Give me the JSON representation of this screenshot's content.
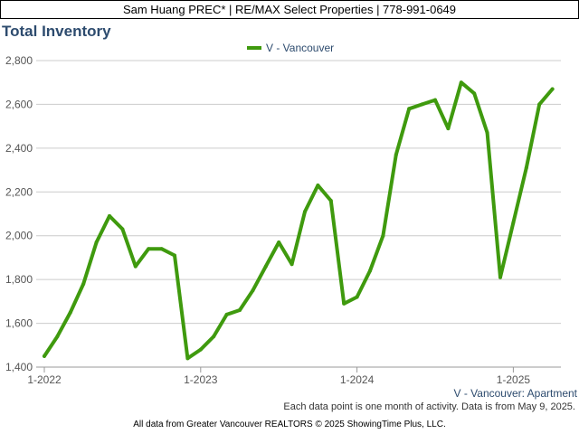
{
  "header": {
    "agent_line": "Sam Huang PREC* | RE/MAX Select Properties | 778-991-0649"
  },
  "note": "Each data point is one month of activity. Data is from May 9, 2025.",
  "footer": "All data from Greater Vancouver REALTORS © 2025 ShowingTime Plus, LLC.",
  "colors": {
    "series": "#3f9a0e",
    "title": "#2d4b6e",
    "grid": "#cccccc"
  },
  "chart_data": {
    "type": "line",
    "title": "Total Inventory",
    "legend": "V - Vancouver",
    "legend_position": "top-center",
    "sublabel": "V - Vancouver: Apartment",
    "grid": true,
    "ylim": [
      1400,
      2800
    ],
    "yticks": [
      1400,
      1600,
      1800,
      2000,
      2200,
      2400,
      2600,
      2800
    ],
    "ytick_labels": [
      "1,400",
      "1,600",
      "1,800",
      "2,000",
      "2,200",
      "2,400",
      "2,600",
      "2,800"
    ],
    "xticks": [
      {
        "date": "2022-01",
        "label": "1-2022"
      },
      {
        "date": "2023-01",
        "label": "1-2023"
      },
      {
        "date": "2024-01",
        "label": "1-2024"
      },
      {
        "date": "2025-01",
        "label": "1-2025"
      }
    ],
    "x": [
      "2022-01",
      "2022-02",
      "2022-03",
      "2022-04",
      "2022-05",
      "2022-06",
      "2022-07",
      "2022-08",
      "2022-09",
      "2022-10",
      "2022-11",
      "2022-12",
      "2023-01",
      "2023-02",
      "2023-03",
      "2023-04",
      "2023-05",
      "2023-06",
      "2023-07",
      "2023-08",
      "2023-09",
      "2023-10",
      "2023-11",
      "2023-12",
      "2024-01",
      "2024-02",
      "2024-03",
      "2024-04",
      "2024-05",
      "2024-06",
      "2024-07",
      "2024-08",
      "2024-09",
      "2024-10",
      "2024-11",
      "2024-12",
      "2025-01",
      "2025-02",
      "2025-03",
      "2025-04"
    ],
    "series": [
      {
        "name": "V - Vancouver",
        "values": [
          1450,
          1540,
          1650,
          1780,
          1970,
          2090,
          2030,
          1860,
          1940,
          1940,
          1910,
          1440,
          1480,
          1540,
          1640,
          1660,
          1750,
          1860,
          1970,
          1870,
          2110,
          2230,
          2160,
          1690,
          1720,
          1840,
          2000,
          2370,
          2580,
          2600,
          2620,
          2490,
          2700,
          2650,
          2470,
          1810,
          2060,
          2310,
          2600,
          2670
        ]
      }
    ]
  }
}
